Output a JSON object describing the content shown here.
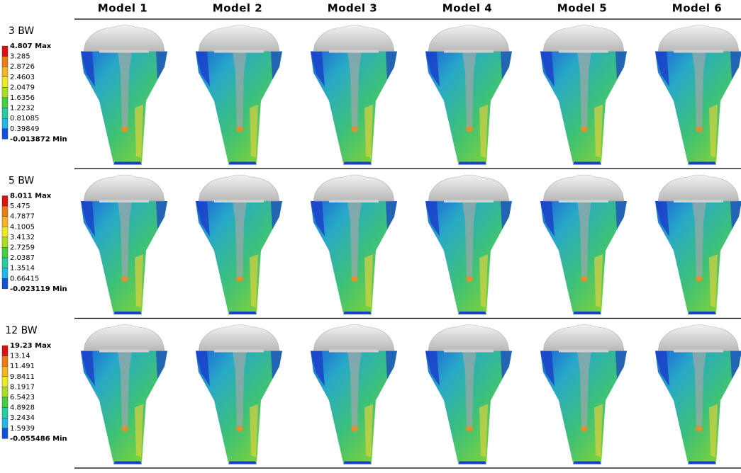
{
  "columns": [
    "Model 1",
    "Model 2",
    "Model 3",
    "Model 4",
    "Model 5",
    "Model 6"
  ],
  "rows": [
    {
      "label": "3 BW",
      "legend": [
        "4.807 Max",
        "3.285",
        "2.8726",
        "2.4603",
        "2.0479",
        "1.6356",
        "1.2232",
        "0.81085",
        "0.39849",
        "-0.013872 Min"
      ]
    },
    {
      "label": "5 BW",
      "legend": [
        "8.011 Max",
        "5.475",
        "4.7877",
        "4.1005",
        "3.4132",
        "2.7259",
        "2.0387",
        "1.3514",
        "0.66415",
        "-0.023119 Min"
      ]
    },
    {
      "label": "12 BW",
      "legend": [
        "19.23 Max",
        "13.14",
        "11.491",
        "9.8411",
        "8.1917",
        "6.5423",
        "4.8928",
        "3.2434",
        "1.5939",
        "-0.055486 Min"
      ]
    }
  ]
}
